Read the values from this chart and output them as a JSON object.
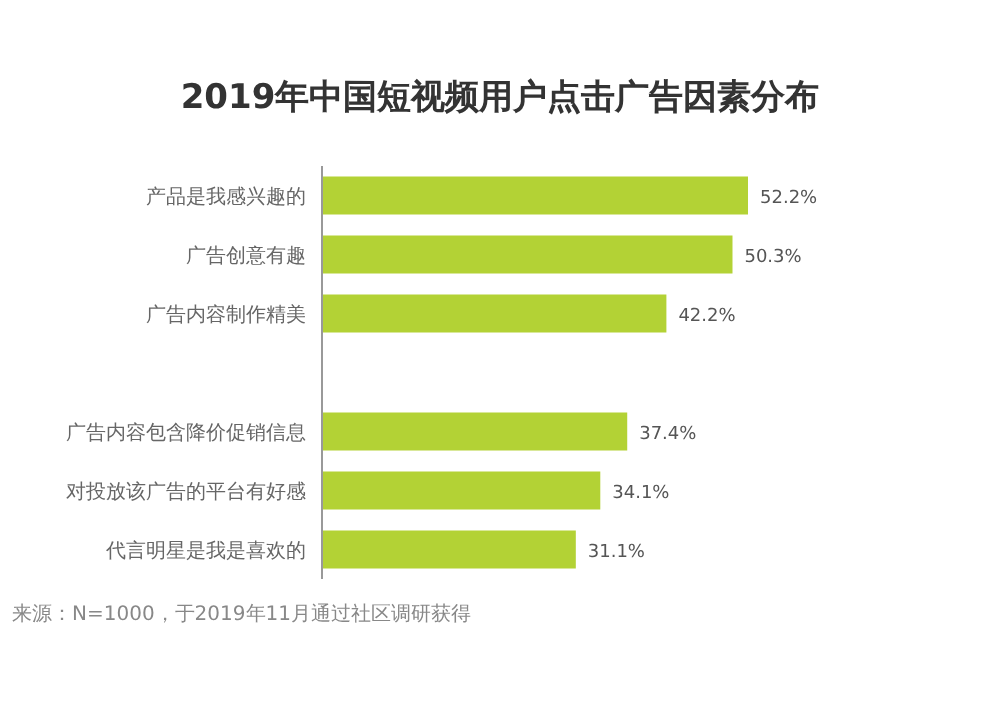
{
  "chart_data": {
    "type": "bar",
    "orientation": "horizontal",
    "title": "2019年中国短视频用户点击广告因素分布",
    "categories": [
      "产品是我感兴趣的",
      "广告创意有趣",
      "广告内容制作精美",
      null,
      "广告内容包含降价促销信息",
      "对投放该广告的平台有好感",
      "代言明星是我是喜欢的"
    ],
    "values": [
      52.2,
      50.3,
      42.2,
      null,
      37.4,
      34.1,
      31.1
    ],
    "value_labels": [
      "52.2%",
      "50.3%",
      "42.2%",
      null,
      "37.4%",
      "34.1%",
      "31.1%"
    ],
    "color": "#b3d235",
    "annotations": [
      "来源：N=1000，于2019年11月通过社区调研获得"
    ]
  }
}
